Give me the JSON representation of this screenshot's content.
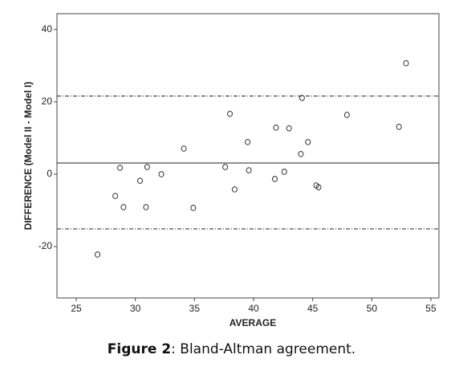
{
  "chart_data": {
    "type": "scatter",
    "xlabel": "AVERAGE",
    "ylabel": "DIFFERENCE (Model II - Model I)",
    "xlim": [
      23.37,
      55.68
    ],
    "ylim": [
      -34.2,
      44.4
    ],
    "xticks": [
      25,
      30,
      35,
      40,
      45,
      50,
      55
    ],
    "yticks": [
      -20,
      0,
      20,
      40
    ],
    "x": [
      52.9,
      44.1,
      38.0,
      47.9,
      41.9,
      43.0,
      52.3,
      39.5,
      44.6,
      34.1,
      44.0,
      28.7,
      31.0,
      37.6,
      39.6,
      42.6,
      32.2,
      30.4,
      41.8,
      38.4,
      45.3,
      45.5,
      28.3,
      29.0,
      30.9,
      34.9,
      26.8
    ],
    "values": [
      30.7,
      21.1,
      16.7,
      16.4,
      12.9,
      12.7,
      13.1,
      8.9,
      8.9,
      7.1,
      5.6,
      1.8,
      2.0,
      2.0,
      1.1,
      0.7,
      0.0,
      -1.8,
      -1.3,
      -4.2,
      -3.1,
      -3.6,
      -6.0,
      -9.1,
      -9.1,
      -9.3,
      -22.2
    ],
    "reference_lines": [
      {
        "value": 21.6,
        "style": "dashdot"
      },
      {
        "value": 3.1,
        "style": "solid"
      },
      {
        "value": -15.1,
        "style": "dashdot"
      }
    ],
    "color": "#333333"
  },
  "caption": {
    "label": "Figure 2",
    "text": ": Bland-Altman agreement."
  }
}
